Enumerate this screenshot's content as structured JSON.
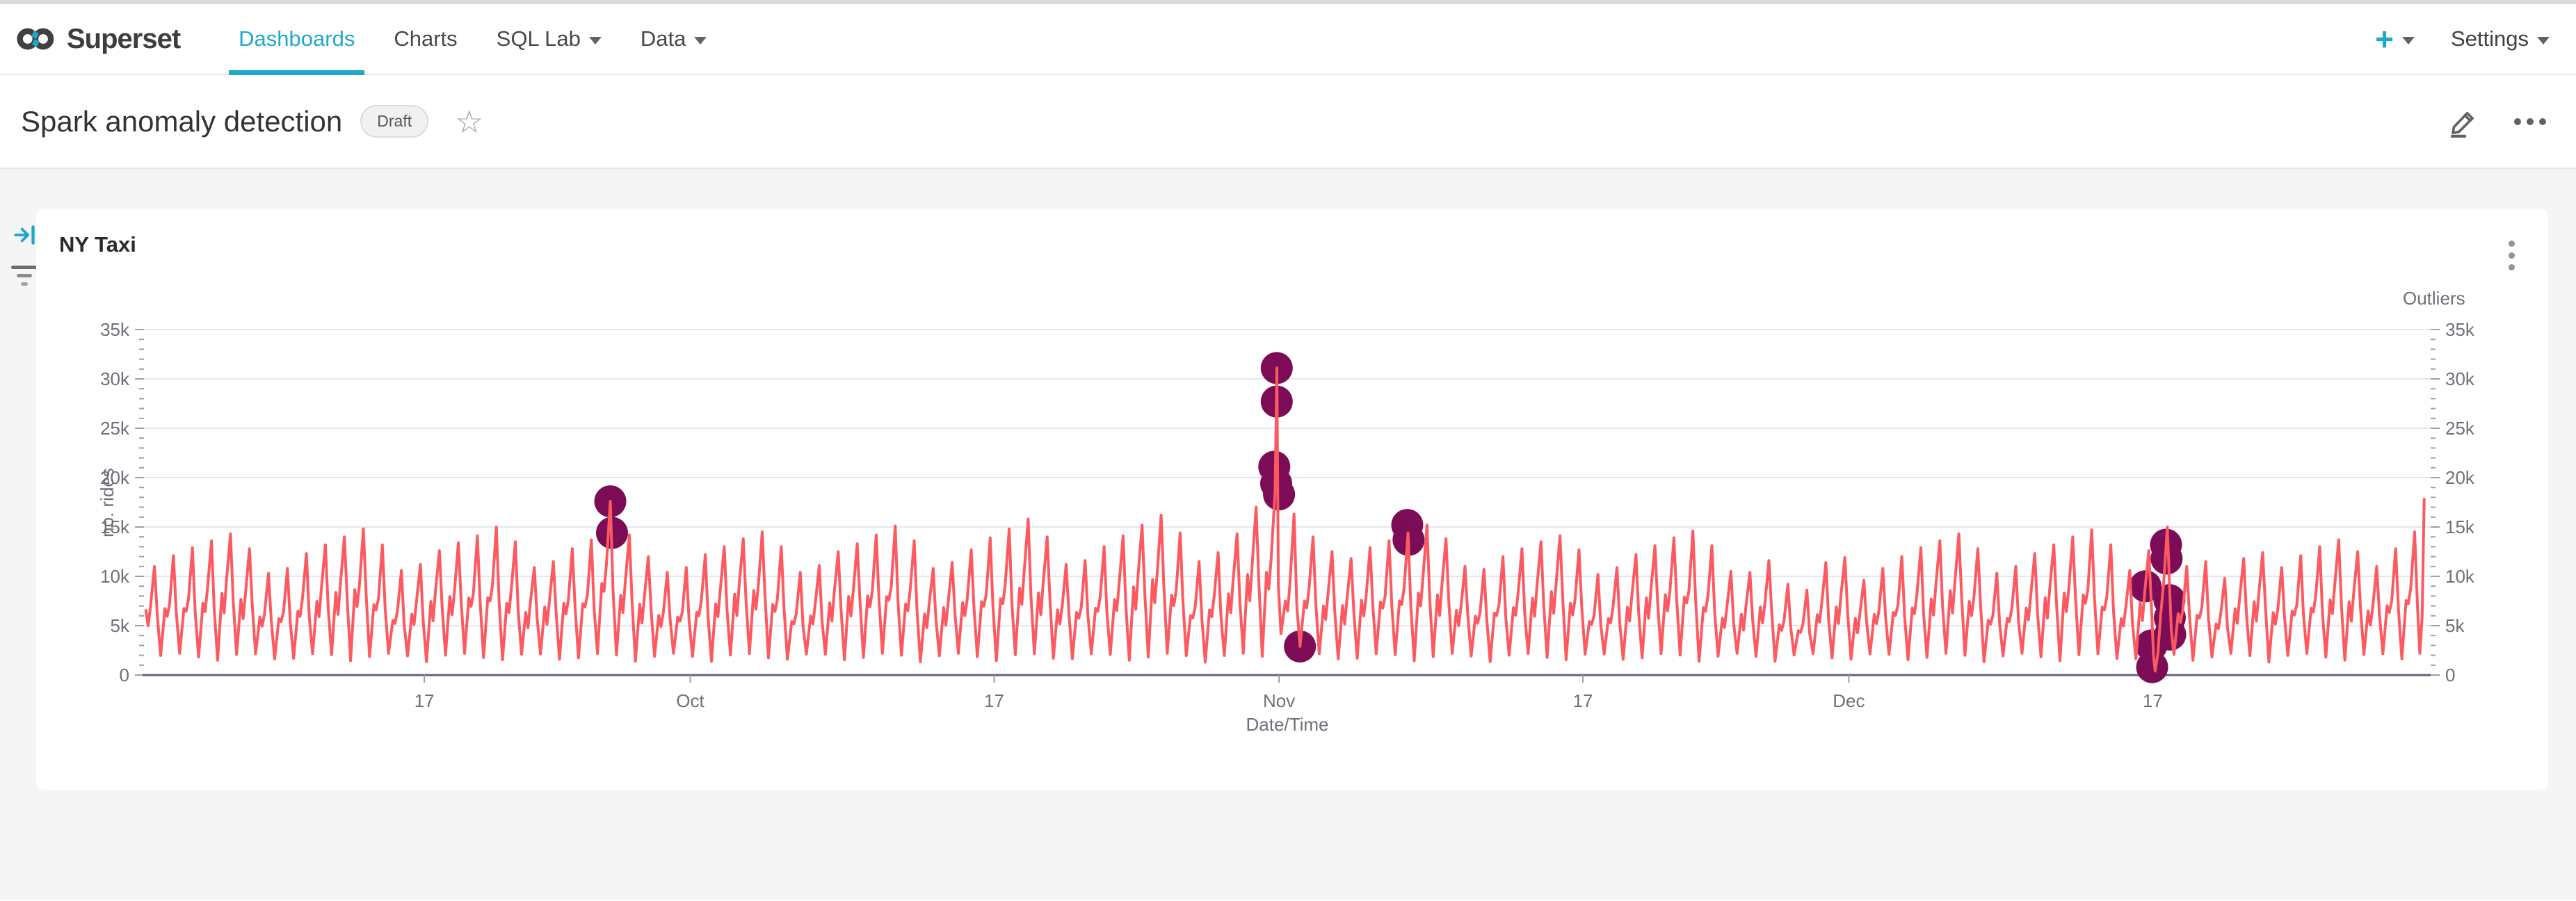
{
  "nav": {
    "brand": "Superset",
    "items": [
      {
        "label": "Dashboards",
        "active": true,
        "caret": false
      },
      {
        "label": "Charts",
        "active": false,
        "caret": false
      },
      {
        "label": "SQL Lab",
        "active": false,
        "caret": true
      },
      {
        "label": "Data",
        "active": false,
        "caret": true
      }
    ],
    "new_label": "+",
    "settings_label": "Settings"
  },
  "header": {
    "title": "Spark anomaly detection",
    "status_badge": "Draft"
  },
  "chart": {
    "title": "NY Taxi"
  },
  "colors": {
    "accent": "#1fa8c9",
    "line": "#fc5a60",
    "outlier": "#7b0c55",
    "grid": "#e4e7f1",
    "axis_label": "#6e7079",
    "axis_line": "#5d6572",
    "tick": "#9aa0a6"
  },
  "chart_data": {
    "type": "line",
    "title": "NY Taxi",
    "grid": true,
    "x_axis": {
      "label": "Date/Time",
      "start_date": "Sep 2",
      "end_date": "Dec 31",
      "tick_labels": [
        "17",
        "Oct",
        "17",
        "Nov",
        "17",
        "Dec",
        "17"
      ],
      "tick_day_index": [
        15,
        29,
        45,
        60,
        76,
        90,
        106
      ]
    },
    "y_axis_left": {
      "label": "no. rides",
      "tick_values": [
        0,
        5,
        10,
        15,
        20,
        25,
        30,
        35
      ],
      "tick_labels": [
        "0",
        "5k",
        "10k",
        "15k",
        "20k",
        "25k",
        "30k",
        "35k"
      ],
      "range_k": [
        0,
        35
      ]
    },
    "y_axis_right": {
      "label": "Outliers",
      "tick_values": [
        0,
        5,
        10,
        15,
        20,
        25,
        30,
        35
      ],
      "tick_labels": [
        "0",
        "5k",
        "10k",
        "15k",
        "20k",
        "25k",
        "30k",
        "35k"
      ],
      "range_k": [
        0,
        35
      ]
    },
    "line_series": {
      "name": "rides",
      "unit": "k",
      "daily_peaks_k": [
        11.0,
        12.1,
        12.9,
        13.6,
        14.3,
        12.8,
        10.3,
        10.8,
        12.3,
        13.2,
        14.0,
        14.8,
        13.2,
        10.6,
        11.2,
        12.6,
        13.4,
        14.1,
        15.0,
        13.5,
        10.9,
        11.5,
        12.8,
        13.7,
        17.6,
        14.2,
        12.0,
        10.4,
        10.9,
        12.2,
        13.0,
        13.8,
        14.5,
        13.0,
        10.4,
        11.1,
        12.5,
        13.3,
        14.2,
        15.1,
        13.6,
        10.8,
        11.4,
        12.7,
        13.9,
        14.8,
        15.8,
        14.0,
        11.2,
        11.6,
        13.0,
        14.1,
        15.2,
        16.2,
        14.4,
        11.5,
        12.4,
        14.3,
        17.0,
        18.6,
        16.3,
        14.0,
        12.5,
        11.8,
        12.9,
        13.6,
        14.4,
        15.2,
        13.8,
        11.0,
        10.7,
        12.0,
        12.8,
        13.5,
        14.1,
        12.7,
        10.2,
        10.9,
        12.2,
        13.1,
        13.9,
        14.6,
        13.1,
        10.5,
        10.4,
        11.6,
        9.2,
        8.6,
        11.4,
        11.9,
        9.6,
        10.8,
        12.0,
        12.9,
        13.6,
        14.3,
        12.8,
        10.3,
        11.0,
        12.3,
        13.2,
        14.0,
        14.7,
        13.2,
        10.6,
        12.6,
        15.0,
        11.0,
        11.5,
        9.8,
        11.8,
        12.4,
        10.9,
        12.1,
        13.0,
        13.7,
        12.5,
        11.0,
        12.8,
        14.5,
        17.8
      ],
      "hour_profile": [
        [
          2.8,
          -1
        ],
        [
          8.2,
          0.56
        ],
        [
          11.0,
          0.47
        ],
        [
          14.0,
          0.63
        ],
        [
          19.0,
          1.0
        ],
        [
          22.5,
          0.52
        ]
      ],
      "trough_k_range": [
        1.3,
        2.2
      ],
      "trough_overrides": {
        "61": 2.9
      },
      "special_days": {
        "59": [
          [
            2.8,
            1.9
          ],
          [
            8.2,
            10.4
          ],
          [
            11,
            8.7
          ],
          [
            14,
            11.7
          ],
          [
            19,
            18.6
          ],
          [
            21.3,
            31.1
          ],
          [
            23.2,
            9.0
          ]
        ],
        "60": [
          [
            2.5,
            4.2
          ],
          [
            8,
            7.5
          ],
          [
            11,
            6.5
          ],
          [
            14,
            9.5
          ],
          [
            19,
            16.3
          ],
          [
            22.5,
            7.0
          ]
        ],
        "61": [
          [
            2.5,
            2.9
          ],
          [
            8.2,
            7.5
          ],
          [
            11,
            6.8
          ],
          [
            14,
            8.8
          ],
          [
            19,
            14.0
          ],
          [
            22.5,
            7.2
          ]
        ],
        "106": [
          [
            1.0,
            2.0
          ],
          [
            3.0,
            0.4
          ],
          [
            6.5,
            2.2
          ],
          [
            10,
            6.0
          ],
          [
            14,
            9.5
          ],
          [
            18.5,
            15.0
          ],
          [
            21,
            9.5
          ],
          [
            23.5,
            4.5
          ]
        ],
        "120": [
          [
            1.5,
            2.2
          ],
          [
            4.5,
            6.0
          ],
          [
            7.0,
            17.8
          ]
        ]
      }
    },
    "outlier_series": {
      "name": "Outliers",
      "unit": "k",
      "points_day_valuek": [
        [
          24.79,
          17.6
        ],
        [
          24.88,
          14.4
        ],
        [
          59.88,
          31.1
        ],
        [
          59.88,
          27.7
        ],
        [
          59.75,
          21.1
        ],
        [
          59.85,
          19.4
        ],
        [
          60.0,
          18.3
        ],
        [
          61.1,
          2.9
        ],
        [
          66.75,
          15.2
        ],
        [
          66.82,
          13.7
        ],
        [
          105.62,
          9.0
        ],
        [
          105.93,
          3.0
        ],
        [
          105.97,
          0.8
        ],
        [
          106.7,
          13.2
        ],
        [
          106.73,
          11.8
        ],
        [
          106.88,
          7.6
        ],
        [
          106.9,
          5.8
        ],
        [
          106.92,
          4.1
        ]
      ]
    }
  }
}
